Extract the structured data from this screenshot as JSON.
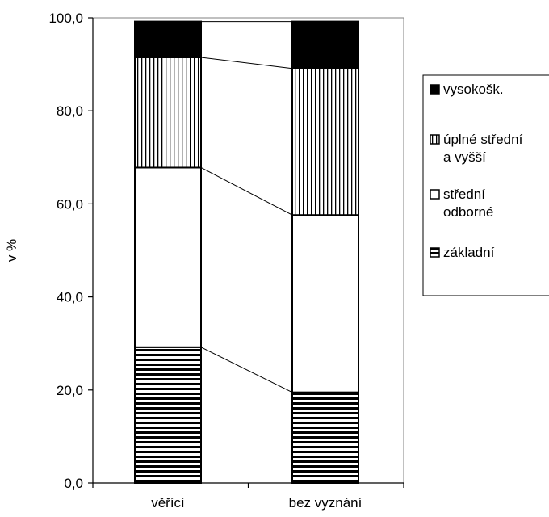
{
  "chart_data": {
    "type": "bar",
    "stacked": true,
    "categories": [
      "věřící",
      "bez vyznání"
    ],
    "series": [
      {
        "name": "základní",
        "values": [
          29.2,
          19.5
        ],
        "pattern": "horizontal"
      },
      {
        "name": "střední odborné",
        "values": [
          38.6,
          38.1
        ],
        "pattern": "none"
      },
      {
        "name": "úplné střední a vyšší",
        "values": [
          23.7,
          31.5
        ],
        "pattern": "vertical"
      },
      {
        "name": "vysokošk.",
        "values": [
          7.7,
          10.1
        ],
        "pattern": "solid"
      }
    ],
    "legend_order": [
      "vysokošk.",
      "úplné střední a vyšší",
      "střední odborné",
      "základní"
    ],
    "legend_lines": [
      [
        "vysokošk."
      ],
      [
        "úplné střední",
        "a vyšší"
      ],
      [
        "střední",
        "odborné"
      ],
      [
        "základní"
      ]
    ],
    "yticks": [
      "0,0",
      "20,0",
      "40,0",
      "60,0",
      "80,0",
      "100,0"
    ],
    "ylim": [
      0,
      100
    ],
    "ylabel": "v %",
    "xlabel": "",
    "title": "",
    "series_lines": true,
    "grid": false,
    "legend_position": "right"
  }
}
